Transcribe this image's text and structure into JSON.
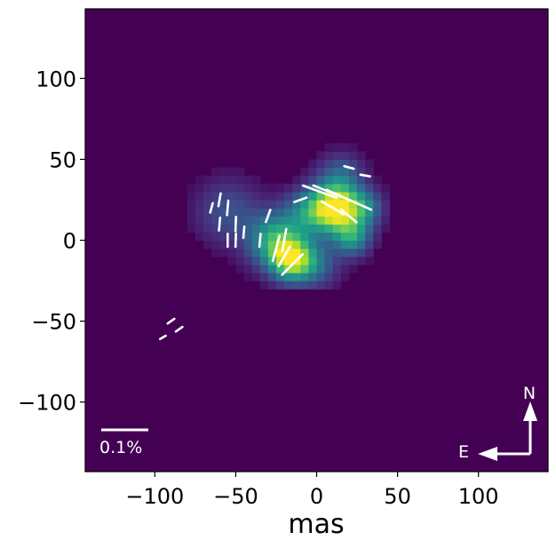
{
  "chart_data": {
    "type": "heatmap",
    "xlabel": "mas",
    "ylabel": "",
    "title": "",
    "xlim": [
      -143,
      143
    ],
    "ylim": [
      -143,
      143
    ],
    "x_ticks": [
      -100,
      -50,
      0,
      50,
      100
    ],
    "y_ticks": [
      -100,
      -50,
      0,
      50,
      100
    ],
    "x_tick_labels": [
      "−100",
      "−50",
      "0",
      "50",
      "100"
    ],
    "y_tick_labels": [
      "−100",
      "−50",
      "0",
      "50",
      "100"
    ],
    "colormap": "viridis",
    "background_color": "#440154",
    "intensity_peaks": [
      {
        "x": 12,
        "y": 20,
        "sigma": 10,
        "amp": 1.0
      },
      {
        "x": -15,
        "y": -12,
        "sigma": 9,
        "amp": 0.75
      },
      {
        "x": -25,
        "y": 0,
        "sigma": 12,
        "amp": 0.62
      },
      {
        "x": 22,
        "y": 2,
        "sigma": 8,
        "amp": 0.5
      },
      {
        "x": -5,
        "y": 18,
        "sigma": 10,
        "amp": 0.42
      },
      {
        "x": 15,
        "y": 40,
        "sigma": 10,
        "amp": 0.3
      },
      {
        "x": -55,
        "y": 18,
        "sigma": 14,
        "amp": 0.25
      },
      {
        "x": 0,
        "y": -15,
        "sigma": 10,
        "amp": 0.3
      },
      {
        "x": 30,
        "y": 20,
        "sigma": 8,
        "amp": 0.4
      }
    ],
    "polarization_vectors": [
      {
        "x": 2,
        "y": 30,
        "len": 22,
        "angle": -20
      },
      {
        "x": 10,
        "y": 29,
        "len": 26,
        "angle": -22
      },
      {
        "x": 20,
        "y": 25,
        "len": 30,
        "angle": -24
      },
      {
        "x": 10,
        "y": 20,
        "len": 16,
        "angle": -30
      },
      {
        "x": 20,
        "y": 15,
        "len": 12,
        "angle": -40
      },
      {
        "x": -20,
        "y": 0,
        "len": 14,
        "angle": 80
      },
      {
        "x": -25,
        "y": -5,
        "len": 16,
        "angle": 75
      },
      {
        "x": -15,
        "y": -15,
        "len": 18,
        "angle": 45
      },
      {
        "x": -20,
        "y": -10,
        "len": 14,
        "angle": 60
      },
      {
        "x": -60,
        "y": 25,
        "len": 8,
        "angle": 80
      },
      {
        "x": -55,
        "y": 20,
        "len": 9,
        "angle": 85
      },
      {
        "x": -50,
        "y": 10,
        "len": 9,
        "angle": 88
      },
      {
        "x": -60,
        "y": 10,
        "len": 8,
        "angle": 85
      },
      {
        "x": -55,
        "y": 0,
        "len": 8,
        "angle": 90
      },
      {
        "x": -50,
        "y": 0,
        "len": 8,
        "angle": 88
      },
      {
        "x": -45,
        "y": 5,
        "len": 7,
        "angle": 85
      },
      {
        "x": -65,
        "y": 20,
        "len": 6,
        "angle": 75
      },
      {
        "x": -35,
        "y": 0,
        "len": 8,
        "angle": 85
      },
      {
        "x": -30,
        "y": 15,
        "len": 8,
        "angle": 70
      },
      {
        "x": -10,
        "y": 25,
        "len": 8,
        "angle": 20
      },
      {
        "x": 30,
        "y": 40,
        "len": 6,
        "angle": -10
      },
      {
        "x": 20,
        "y": 45,
        "len": 6,
        "angle": -15
      },
      {
        "x": -85,
        "y": -55,
        "len": 5,
        "angle": 35
      },
      {
        "x": -90,
        "y": -50,
        "len": 5,
        "angle": 35
      },
      {
        "x": -95,
        "y": -60,
        "len": 4,
        "angle": 30
      }
    ],
    "scale_bar": {
      "label": "0.1%"
    },
    "compass": {
      "north": "N",
      "east": "E"
    }
  }
}
